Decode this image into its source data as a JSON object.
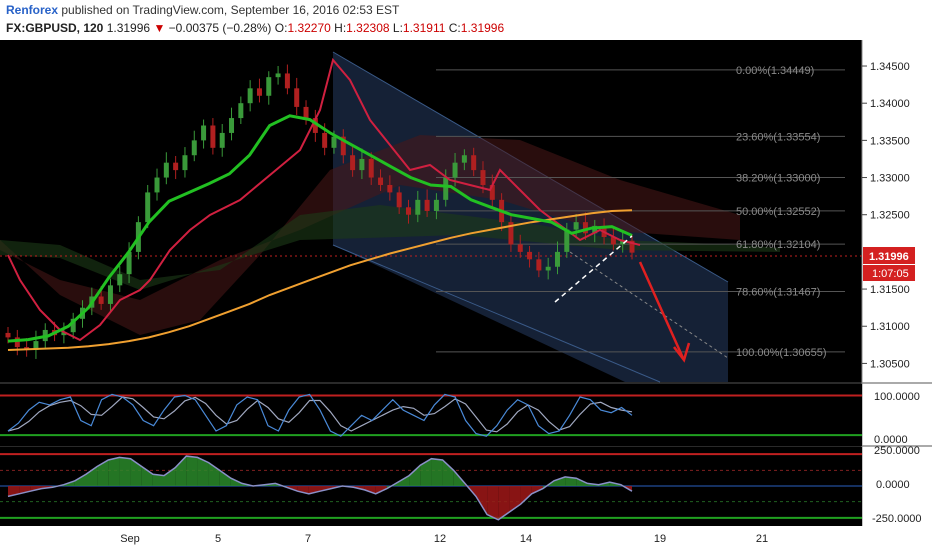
{
  "header": {
    "author": "Renforex",
    "published": "published on TradingView.com, September 16, 2016 02:53 EST",
    "symbol": "FX:GBPUSD, 120",
    "last": "1.31996",
    "change_arrow": "▼",
    "change": "−0.00375 (−0.28%)",
    "o_label": "O:",
    "o": "1.32270",
    "h_label": "H:",
    "h": "1.32308",
    "l_label": "L:",
    "l": "1.31911",
    "c_label": "C:",
    "c": "1.31996"
  },
  "price_badge": "1.31996",
  "countdown_badge": "1:07:05",
  "colors": {
    "background": "#000000",
    "channel": "#1c2c48",
    "fast_ma": "#22c022",
    "ma200": "#f0a030",
    "tenkan": "#d02040",
    "up_candle": "#3a9a3a",
    "down_candle": "#b02020",
    "stoch_k": "#4a8ad8",
    "stoch_d": "#a0a8c0",
    "forecast_arrow": "#e02020"
  },
  "chart_data": [
    {
      "type": "line",
      "subtype": "candlestick",
      "symbol": "FX:GBPUSD",
      "timeframe": "120",
      "y_ticks": [
        "1.34500",
        "1.34000",
        "1.33500",
        "1.33000",
        "1.32500",
        "1.31500",
        "1.31000",
        "1.30500"
      ],
      "ylim": [
        1.3025,
        1.3485
      ],
      "x_ticks": [
        "Sep",
        "5",
        "7",
        "12",
        "14",
        "19",
        "21"
      ],
      "fibonacci": [
        {
          "label": "0.00%(1.34449)",
          "value": 1.34449
        },
        {
          "label": "23.60%(1.33554)",
          "value": 1.33554
        },
        {
          "label": "38.20%(1.33000)",
          "value": 1.33
        },
        {
          "label": "50.00%(1.32552)",
          "value": 1.32552
        },
        {
          "label": "61.80%(1.32104)",
          "value": 1.32104
        },
        {
          "label": "78.60%(1.31467)",
          "value": 1.31467
        },
        {
          "label": "100.00%(1.30655)",
          "value": 1.30655
        }
      ],
      "close_series": [
        1.3085,
        1.3072,
        1.3068,
        1.308,
        1.3095,
        1.3088,
        1.3092,
        1.311,
        1.3125,
        1.314,
        1.313,
        1.3155,
        1.317,
        1.32,
        1.324,
        1.328,
        1.33,
        1.332,
        1.331,
        1.333,
        1.335,
        1.337,
        1.334,
        1.336,
        1.338,
        1.34,
        1.342,
        1.341,
        1.3435,
        1.344,
        1.342,
        1.3395,
        1.338,
        1.336,
        1.334,
        1.3355,
        1.333,
        1.331,
        1.3325,
        1.33,
        1.329,
        1.328,
        1.326,
        1.325,
        1.327,
        1.3255,
        1.327,
        1.33,
        1.332,
        1.333,
        1.331,
        1.329,
        1.327,
        1.324,
        1.321,
        1.32,
        1.319,
        1.3175,
        1.318,
        1.32,
        1.323,
        1.324,
        1.3225,
        1.3235,
        1.322,
        1.321,
        1.3215,
        1.3199
      ],
      "ma200": [
        1.3068,
        1.3069,
        1.307,
        1.3071,
        1.3073,
        1.3076,
        1.308,
        1.3085,
        1.3092,
        1.31,
        1.311,
        1.312,
        1.313,
        1.3142,
        1.3152,
        1.3162,
        1.3172,
        1.3182,
        1.319,
        1.3198,
        1.3205,
        1.3212,
        1.3219,
        1.3225,
        1.323,
        1.3235,
        1.324,
        1.3244,
        1.3248,
        1.3252,
        1.3255,
        1.3256
      ],
      "ma_fast": [
        1.308,
        1.3082,
        1.3087,
        1.31,
        1.3125,
        1.3165,
        1.32,
        1.324,
        1.3268,
        1.328,
        1.3292,
        1.3305,
        1.333,
        1.337,
        1.3383,
        1.3378,
        1.336,
        1.3345,
        1.333,
        1.3315,
        1.33,
        1.329,
        1.3288,
        1.327,
        1.326,
        1.325,
        1.3245,
        1.324,
        1.3225,
        1.3232,
        1.3234,
        1.3222
      ],
      "ma_fast_x_start": 0,
      "ma_fast_x_end": 0.73,
      "forecast": "down"
    },
    {
      "type": "line",
      "name": "stochastic",
      "y_ticks": [
        "100.0000",
        "0.0000"
      ],
      "ylim": [
        -5,
        110
      ],
      "upper_level": 88,
      "lower_level": 12,
      "k": [
        20,
        35,
        60,
        75,
        70,
        80,
        85,
        40,
        30,
        80,
        90,
        85,
        70,
        40,
        30,
        60,
        85,
        88,
        80,
        50,
        20,
        30,
        70,
        85,
        80,
        30,
        20,
        60,
        85,
        90,
        60,
        20,
        10,
        30,
        50,
        40,
        60,
        80,
        60,
        50,
        40,
        70,
        90,
        85,
        40,
        15,
        10,
        30,
        60,
        80,
        70,
        30,
        15,
        20,
        50,
        85,
        80,
        60,
        55,
        65,
        50
      ]
    },
    {
      "type": "area",
      "name": "macd",
      "y_ticks": [
        "250.0000",
        "0.0000",
        "-250.0000"
      ],
      "ylim": [
        -300,
        300
      ],
      "upper_level": 245,
      "lower_level": -245,
      "line": [
        -80,
        -60,
        -40,
        -20,
        -10,
        10,
        40,
        90,
        150,
        200,
        220,
        210,
        150,
        90,
        80,
        140,
        230,
        220,
        180,
        120,
        60,
        20,
        0,
        10,
        20,
        -10,
        -40,
        -60,
        -40,
        -20,
        0,
        -10,
        -30,
        -60,
        -20,
        30,
        80,
        160,
        210,
        200,
        120,
        20,
        -80,
        -220,
        -260,
        -200,
        -140,
        -60,
        -20,
        40,
        70,
        60,
        20,
        10,
        30,
        10,
        -40
      ]
    }
  ],
  "stoch_labels": {
    "top": "100.0000",
    "bottom": "0.0000"
  },
  "macd_labels": {
    "top": "250.0000",
    "mid": "0.0000",
    "bottom": "-250.0000"
  }
}
